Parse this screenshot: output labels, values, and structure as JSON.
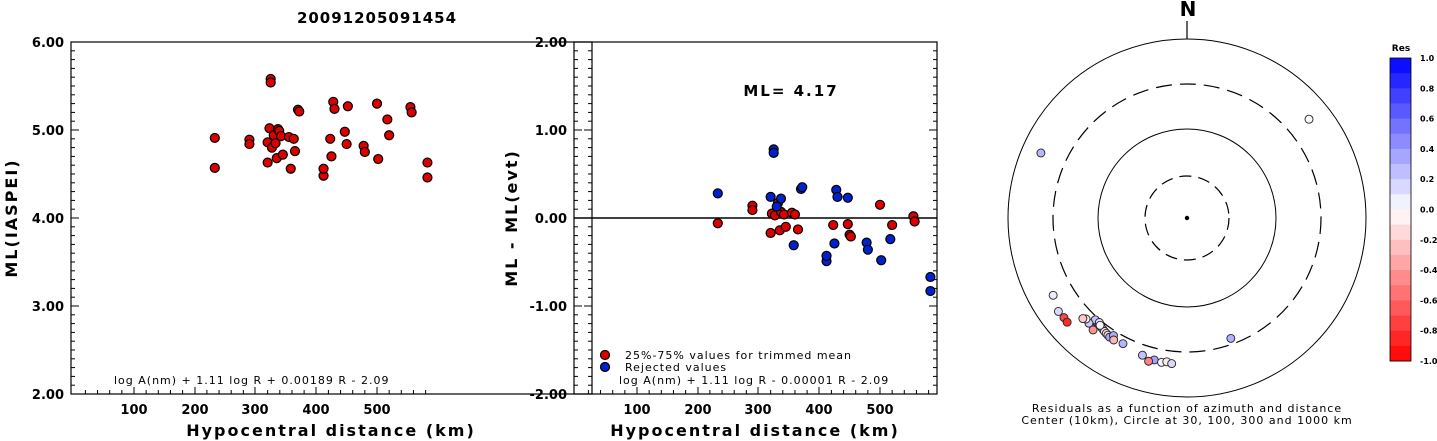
{
  "title": "20091205091454",
  "chart_data": [
    {
      "type": "scatter",
      "name": "ml-vs-distance",
      "xlabel": "Hypocentral distance (km)",
      "ylabel": "ML(IASPEI)",
      "xlim": [
        0,
        590
      ],
      "ylim": [
        2.0,
        6.0
      ],
      "xticks": [
        "100",
        "200",
        "300",
        "400",
        "500"
      ],
      "yticks": [
        "2.00",
        "3.00",
        "4.00",
        "5.00",
        "6.00"
      ],
      "formula": "log A(nm) + 1.11 log R + 0.00189 R - 2.09",
      "marker_color": "#dd0000",
      "points": [
        {
          "x": 233,
          "y": 4.91
        },
        {
          "x": 233,
          "y": 4.57
        },
        {
          "x": 290,
          "y": 4.89
        },
        {
          "x": 290,
          "y": 4.84
        },
        {
          "x": 320,
          "y": 4.63
        },
        {
          "x": 320,
          "y": 4.86
        },
        {
          "x": 323,
          "y": 5.02
        },
        {
          "x": 325,
          "y": 5.58
        },
        {
          "x": 325,
          "y": 5.54
        },
        {
          "x": 327,
          "y": 4.8
        },
        {
          "x": 330,
          "y": 4.94
        },
        {
          "x": 333,
          "y": 4.85
        },
        {
          "x": 335,
          "y": 4.68
        },
        {
          "x": 337,
          "y": 5.01
        },
        {
          "x": 339,
          "y": 4.99
        },
        {
          "x": 342,
          "y": 4.93
        },
        {
          "x": 345,
          "y": 4.72
        },
        {
          "x": 355,
          "y": 4.92
        },
        {
          "x": 358,
          "y": 4.56
        },
        {
          "x": 363,
          "y": 4.9
        },
        {
          "x": 365,
          "y": 4.76
        },
        {
          "x": 370,
          "y": 5.23
        },
        {
          "x": 372,
          "y": 5.21
        },
        {
          "x": 412,
          "y": 4.48
        },
        {
          "x": 412,
          "y": 4.56
        },
        {
          "x": 423,
          "y": 4.9
        },
        {
          "x": 425,
          "y": 4.7
        },
        {
          "x": 428,
          "y": 5.32
        },
        {
          "x": 430,
          "y": 5.24
        },
        {
          "x": 447,
          "y": 4.98
        },
        {
          "x": 450,
          "y": 4.84
        },
        {
          "x": 452,
          "y": 5.27
        },
        {
          "x": 478,
          "y": 4.82
        },
        {
          "x": 480,
          "y": 4.75
        },
        {
          "x": 500,
          "y": 5.3
        },
        {
          "x": 502,
          "y": 4.67
        },
        {
          "x": 517,
          "y": 5.12
        },
        {
          "x": 520,
          "y": 4.94
        },
        {
          "x": 555,
          "y": 5.26
        },
        {
          "x": 557,
          "y": 5.2
        },
        {
          "x": 583,
          "y": 4.63
        },
        {
          "x": 583,
          "y": 4.46
        }
      ]
    },
    {
      "type": "scatter",
      "name": "residuals-vs-distance",
      "xlabel": "Hypocentral distance (km)",
      "ylabel": "ML - ML(evt)",
      "xlim": [
        0,
        590
      ],
      "ylim": [
        -2.0,
        2.0
      ],
      "xticks": [
        "100",
        "200",
        "300",
        "400",
        "500"
      ],
      "yticks": [
        "-2.00",
        "-1.00",
        "0.00",
        "1.00",
        "2.00"
      ],
      "annotation": "ML= 4.17",
      "formula": "log A(nm) + 1.11 log R - 0.00001 R - 2.09",
      "series": [
        {
          "name": "25%-75% values for trimmed mean",
          "color": "#dd0000",
          "points": [
            {
              "x": 233,
              "y": -0.06
            },
            {
              "x": 290,
              "y": 0.14
            },
            {
              "x": 290,
              "y": 0.09
            },
            {
              "x": 320,
              "y": -0.17
            },
            {
              "x": 322,
              "y": 0.05
            },
            {
              "x": 327,
              "y": 0.03
            },
            {
              "x": 332,
              "y": 0.17
            },
            {
              "x": 335,
              "y": -0.14
            },
            {
              "x": 337,
              "y": 0.07
            },
            {
              "x": 342,
              "y": 0.04
            },
            {
              "x": 345,
              "y": -0.1
            },
            {
              "x": 355,
              "y": 0.06
            },
            {
              "x": 360,
              "y": 0.04
            },
            {
              "x": 365,
              "y": -0.13
            },
            {
              "x": 423,
              "y": -0.08
            },
            {
              "x": 447,
              "y": -0.07
            },
            {
              "x": 450,
              "y": -0.19
            },
            {
              "x": 452,
              "y": -0.21
            },
            {
              "x": 500,
              "y": 0.15
            },
            {
              "x": 520,
              "y": -0.08
            },
            {
              "x": 555,
              "y": 0.02
            },
            {
              "x": 557,
              "y": -0.04
            }
          ]
        },
        {
          "name": "Rejected values",
          "color": "#0022cc",
          "points": [
            {
              "x": 233,
              "y": 0.28
            },
            {
              "x": 320,
              "y": 0.24
            },
            {
              "x": 325,
              "y": 0.78
            },
            {
              "x": 325,
              "y": 0.74
            },
            {
              "x": 330,
              "y": 0.13
            },
            {
              "x": 337,
              "y": 0.22
            },
            {
              "x": 358,
              "y": -0.31
            },
            {
              "x": 370,
              "y": 0.33
            },
            {
              "x": 372,
              "y": 0.35
            },
            {
              "x": 412,
              "y": -0.49
            },
            {
              "x": 412,
              "y": -0.43
            },
            {
              "x": 425,
              "y": -0.29
            },
            {
              "x": 428,
              "y": 0.32
            },
            {
              "x": 430,
              "y": 0.24
            },
            {
              "x": 447,
              "y": 0.23
            },
            {
              "x": 478,
              "y": -0.28
            },
            {
              "x": 480,
              "y": -0.36
            },
            {
              "x": 502,
              "y": -0.48
            },
            {
              "x": 517,
              "y": -0.24
            },
            {
              "x": 583,
              "y": -0.67
            },
            {
              "x": 583,
              "y": -0.83
            }
          ]
        }
      ]
    },
    {
      "type": "scatter",
      "name": "azimuth-distance-residuals",
      "north_label": "N",
      "caption_line1": "Residuals as a function of azimuth and distance",
      "caption_line2": "Center (10km), Circle at 30, 100, 300 and 1000 km",
      "rings_km": [
        30,
        100,
        300,
        1000
      ],
      "colorbar": {
        "title": "Res",
        "ticks": [
          "1.0",
          "0.8",
          "0.6",
          "0.4",
          "0.2",
          "0.0",
          "-0.2",
          "-0.4",
          "-0.6",
          "-0.8",
          "-1.0"
        ]
      },
      "points": [
        {
          "az": 51,
          "dist_km": 555,
          "res": 0.02
        },
        {
          "az": 294,
          "dist_km": 600,
          "res": 0.28
        },
        {
          "az": 240,
          "dist_km": 520,
          "res": 0.07
        },
        {
          "az": 234,
          "dist_km": 585,
          "res": 0.15
        },
        {
          "az": 231,
          "dist_km": 575,
          "res": -0.72
        },
        {
          "az": 229,
          "dist_km": 583,
          "res": -0.83
        },
        {
          "az": 222,
          "dist_km": 330,
          "res": 0.77
        },
        {
          "az": 221,
          "dist_km": 335,
          "res": 0.74
        },
        {
          "az": 222,
          "dist_km": 325,
          "res": 0.24
        },
        {
          "az": 220,
          "dist_km": 320,
          "res": 0.13
        },
        {
          "az": 223,
          "dist_km": 390,
          "res": 0.2
        },
        {
          "az": 218,
          "dist_km": 342,
          "res": 0.04
        },
        {
          "az": 217,
          "dist_km": 348,
          "res": -0.1
        },
        {
          "az": 216,
          "dist_km": 355,
          "res": 0.06
        },
        {
          "az": 215,
          "dist_km": 360,
          "res": -0.17
        },
        {
          "az": 214,
          "dist_km": 365,
          "res": -0.14
        },
        {
          "az": 213,
          "dist_km": 372,
          "res": 0.35
        },
        {
          "az": 219,
          "dist_km": 335,
          "res": 0.03
        },
        {
          "az": 225,
          "dist_km": 380,
          "res": -0.05
        },
        {
          "az": 226,
          "dist_km": 400,
          "res": -0.21
        },
        {
          "az": 212,
          "dist_km": 340,
          "res": 0.33
        },
        {
          "az": 207,
          "dist_km": 362,
          "res": 0.29
        },
        {
          "az": 211,
          "dist_km": 375,
          "res": -0.3
        },
        {
          "az": 220,
          "dist_km": 415,
          "res": -0.43
        },
        {
          "az": 193,
          "dist_km": 410,
          "res": 0.36
        },
        {
          "az": 198,
          "dist_km": 395,
          "res": 0.24
        },
        {
          "az": 195,
          "dist_km": 440,
          "res": -0.49
        },
        {
          "az": 190,
          "dist_km": 420,
          "res": 0.04
        },
        {
          "az": 188,
          "dist_km": 405,
          "res": -0.08
        },
        {
          "az": 186,
          "dist_km": 418,
          "res": 0.15
        },
        {
          "az": 160,
          "dist_km": 260,
          "res": 0.31
        }
      ]
    }
  ]
}
